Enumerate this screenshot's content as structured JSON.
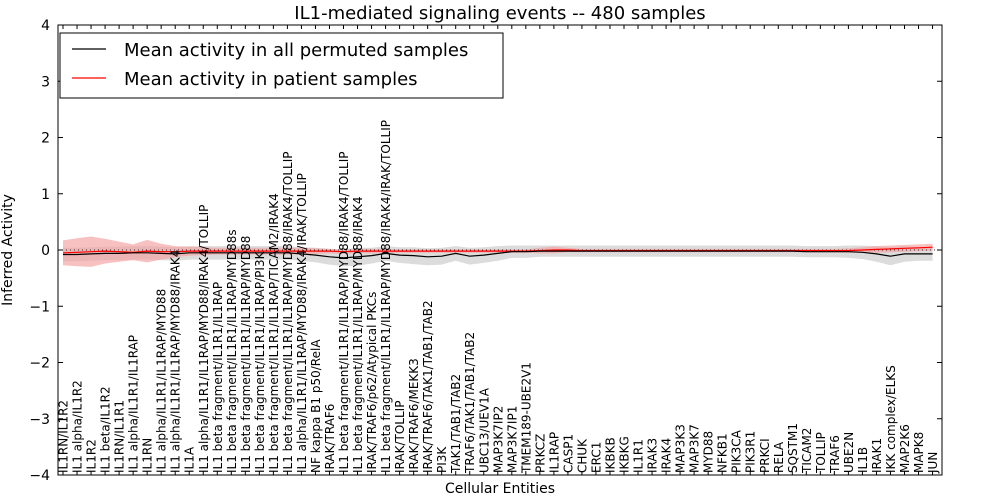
{
  "chart_data": {
    "type": "line",
    "title": "IL1-mediated signaling events -- 480 samples",
    "xlabel": "Cellular Entities",
    "ylabel": "Inferred Activity",
    "ylim": [
      -4,
      4
    ],
    "yticks": [
      4,
      3,
      2,
      1,
      0,
      -1,
      -2,
      -3,
      -4
    ],
    "ytick_labels": [
      "4",
      "3",
      "2",
      "1",
      "0",
      "−1",
      "−2",
      "−3",
      "−4"
    ],
    "legend_position": "top-left",
    "categories": [
      "IL1RN/IL1R2",
      "IL1 alpha/IL1R2",
      "IL1R2",
      "IL1 beta/IL1R2",
      "IL1RN/IL1R1",
      "IL1 alpha/IL1R1/IL1RAP",
      "IL1RN",
      "IL1 alpha/IL1R1/IL1RAP/MYD88",
      "IL1 alpha/IL1R1/IL1RAP/MYD88/IRAK4",
      "IL1A",
      "IL1 alpha/IL1R1/IL1RAP/MYD88/IRAK4/TOLLIP",
      "IL1 beta fragment/IL1R1/IL1RAP",
      "IL1 beta fragment/IL1R1/IL1RAP/MYD88s",
      "IL1 beta fragment/IL1R1/IL1RAP/MYD88",
      "IL1 beta fragment/IL1R1/IL1RAP/PI3K",
      "IL1 beta fragment/IL1R1/IL1RAP/TICAM2/IRAK4",
      "IL1 beta fragment/IL1R1/IL1RAP/MYD88/IRAK4/TOLLIP",
      "IL1 alpha/IL1R1/IL1RAP/MYD88/IRAK4/IRAK/TOLLIP",
      "NF kappa B1 p50/RelA",
      "IRAK/TRAF6",
      "IL1 beta fragment/IL1R1/IL1RAP/MYD88/IRAK4/TOLLIP",
      "IL1 beta fragment/IL1R1/IL1RAP/MYD88/IRAK4",
      "IRAK/TRAF6/p62/Atypical PKCs",
      "IL1 beta fragment/IL1R1/IL1RAP/MYD88/IRAK4/IRAK/TOLLIP",
      "IRAK/TOLLIP",
      "IRAK/TRAF6/MEKK3",
      "IRAK/TRAF6/TAK1/TAB1/TAB2",
      "PI3K",
      "TAK1/TAB1/TAB2",
      "TRAF6/TAK1/TAB1/TAB2",
      "UBC13/UEV1A",
      "MAP3K7IP2",
      "MAP3K7IP1",
      "TMEM189-UBE2V1",
      "PRKCZ",
      "IL1RAP",
      "CASP1",
      "CHUK",
      "ERC1",
      "IKBKB",
      "IKBKG",
      "IL1R1",
      "IRAK3",
      "IRAK4",
      "MAP3K3",
      "MAP3K7",
      "MYD88",
      "NFKB1",
      "PIK3CA",
      "PIK3R1",
      "PRKCI",
      "RELA",
      "SQSTM1",
      "TICAM2",
      "TOLLIP",
      "TRAF6",
      "UBE2N",
      "IL1B",
      "IRAK1",
      "IKK complex/ELKS",
      "MAP2K6",
      "MAPK8",
      "JUN"
    ],
    "series": [
      {
        "name": "Mean activity in all permuted samples",
        "color": "#000000",
        "band_color": "#c0c0c0",
        "values": [
          -0.08,
          -0.08,
          -0.07,
          -0.06,
          -0.06,
          -0.05,
          -0.05,
          -0.06,
          -0.07,
          -0.05,
          -0.05,
          -0.05,
          -0.05,
          -0.05,
          -0.05,
          -0.05,
          -0.05,
          -0.07,
          -0.09,
          -0.12,
          -0.14,
          -0.12,
          -0.1,
          -0.06,
          -0.09,
          -0.1,
          -0.12,
          -0.11,
          -0.06,
          -0.11,
          -0.09,
          -0.06,
          -0.03,
          -0.03,
          -0.02,
          -0.02,
          -0.02,
          -0.02,
          -0.02,
          -0.02,
          -0.02,
          -0.02,
          -0.02,
          -0.02,
          -0.02,
          -0.02,
          -0.02,
          -0.02,
          -0.02,
          -0.02,
          -0.02,
          -0.02,
          -0.02,
          -0.03,
          -0.03,
          -0.03,
          -0.03,
          -0.04,
          -0.07,
          -0.11,
          -0.07,
          -0.07,
          -0.07
        ],
        "band": [
          0.12,
          0.12,
          0.12,
          0.12,
          0.12,
          0.12,
          0.12,
          0.12,
          0.12,
          0.12,
          0.12,
          0.12,
          0.12,
          0.12,
          0.12,
          0.12,
          0.12,
          0.12,
          0.13,
          0.14,
          0.15,
          0.16,
          0.14,
          0.13,
          0.14,
          0.15,
          0.15,
          0.15,
          0.13,
          0.15,
          0.14,
          0.13,
          0.11,
          0.11,
          0.1,
          0.1,
          0.1,
          0.1,
          0.1,
          0.1,
          0.1,
          0.1,
          0.1,
          0.1,
          0.1,
          0.1,
          0.1,
          0.1,
          0.1,
          0.1,
          0.1,
          0.1,
          0.1,
          0.1,
          0.1,
          0.1,
          0.11,
          0.12,
          0.14,
          0.16,
          0.14,
          0.12,
          0.12
        ]
      },
      {
        "name": "Mean activity in patient samples",
        "color": "#ff0000",
        "band_color": "#f4a0a0",
        "values": [
          -0.05,
          -0.04,
          -0.03,
          -0.02,
          -0.03,
          -0.04,
          -0.02,
          -0.03,
          -0.03,
          -0.02,
          -0.02,
          -0.02,
          -0.02,
          -0.02,
          -0.02,
          -0.02,
          -0.02,
          -0.02,
          -0.02,
          -0.02,
          -0.03,
          -0.02,
          -0.02,
          -0.02,
          -0.02,
          -0.02,
          -0.02,
          -0.02,
          -0.02,
          -0.02,
          -0.02,
          -0.02,
          -0.02,
          -0.02,
          -0.01,
          0.0,
          0.0,
          -0.01,
          -0.01,
          -0.01,
          -0.01,
          -0.01,
          -0.01,
          -0.01,
          -0.01,
          -0.01,
          -0.01,
          -0.01,
          -0.01,
          -0.01,
          -0.01,
          -0.01,
          -0.01,
          -0.01,
          -0.01,
          -0.01,
          -0.01,
          0.0,
          0.01,
          0.02,
          0.03,
          0.04,
          0.05
        ],
        "band": [
          0.22,
          0.25,
          0.27,
          0.22,
          0.18,
          0.14,
          0.2,
          0.14,
          0.1,
          0.08,
          0.07,
          0.06,
          0.06,
          0.06,
          0.06,
          0.06,
          0.06,
          0.06,
          0.05,
          0.04,
          0.04,
          0.04,
          0.04,
          0.04,
          0.03,
          0.03,
          0.03,
          0.03,
          0.03,
          0.03,
          0.03,
          0.03,
          0.03,
          0.03,
          0.05,
          0.06,
          0.04,
          0.03,
          0.03,
          0.03,
          0.03,
          0.03,
          0.03,
          0.03,
          0.03,
          0.03,
          0.03,
          0.03,
          0.03,
          0.03,
          0.03,
          0.03,
          0.03,
          0.03,
          0.03,
          0.03,
          0.04,
          0.05,
          0.06,
          0.06,
          0.06,
          0.06,
          0.06
        ]
      }
    ]
  }
}
